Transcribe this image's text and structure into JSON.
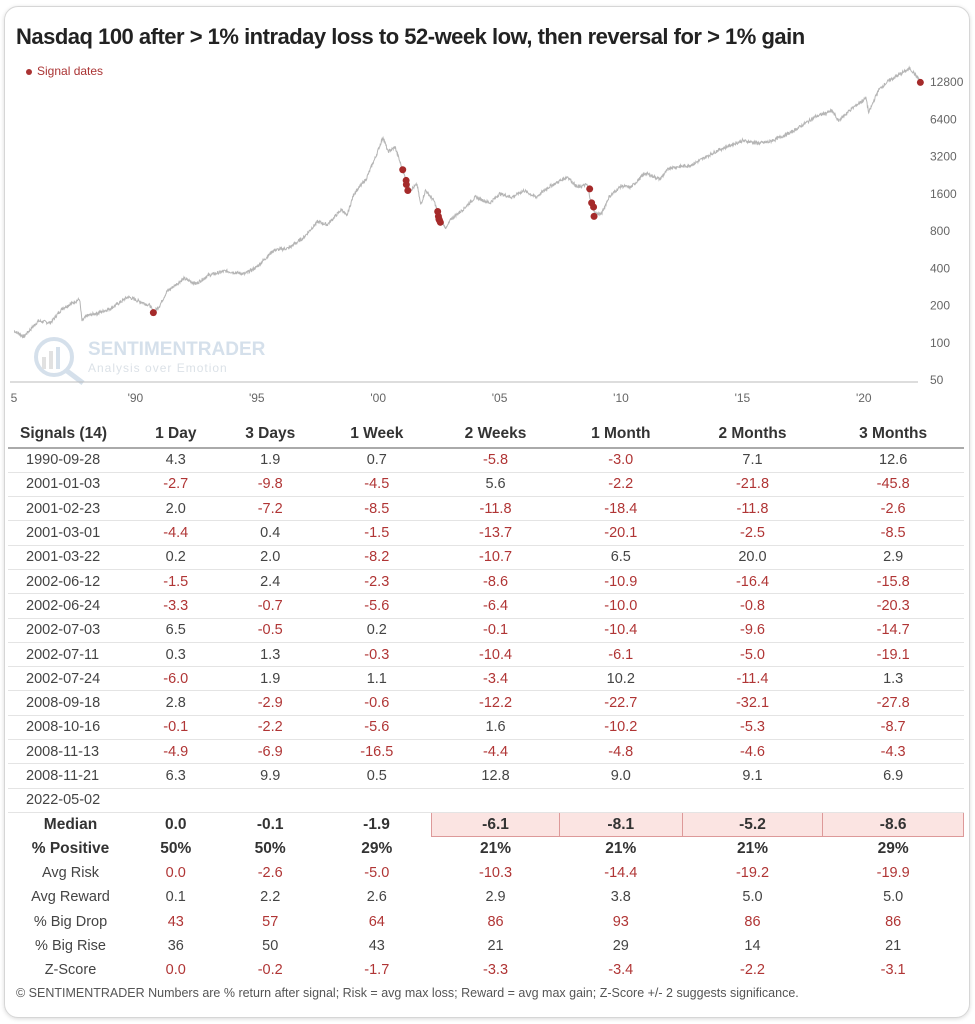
{
  "chart_data": {
    "type": "line",
    "title": "Nasdaq 100 after > 1% intraday loss to 52-week low, then reversal for > 1% gain",
    "legend": "Signal dates",
    "legend_placement": "top-left",
    "y_scale": "log2",
    "ylim": [
      50,
      16000
    ],
    "xlim": [
      1985,
      2022.5
    ],
    "y_ticks": [
      50,
      100,
      200,
      400,
      800,
      1600,
      3200,
      6400,
      12800
    ],
    "x_ticks": [
      {
        "v": 1985,
        "label": "5"
      },
      {
        "v": 1990,
        "label": "'90"
      },
      {
        "v": 1995,
        "label": "'95"
      },
      {
        "v": 2000,
        "label": "'00"
      },
      {
        "v": 2005,
        "label": "'05"
      },
      {
        "v": 2010,
        "label": "'10"
      },
      {
        "v": 2015,
        "label": "'15"
      },
      {
        "v": 2020,
        "label": "'20"
      }
    ],
    "series": [
      {
        "name": "Nasdaq 100",
        "points": [
          [
            1985,
            125
          ],
          [
            1985.4,
            112
          ],
          [
            1986,
            150
          ],
          [
            1986.5,
            145
          ],
          [
            1987,
            190
          ],
          [
            1987.7,
            225
          ],
          [
            1987.8,
            150
          ],
          [
            1988,
            165
          ],
          [
            1988.5,
            175
          ],
          [
            1989,
            190
          ],
          [
            1989.7,
            235
          ],
          [
            1990.6,
            200
          ],
          [
            1990.75,
            175
          ],
          [
            1991,
            200
          ],
          [
            1991.3,
            260
          ],
          [
            1992,
            330
          ],
          [
            1992.5,
            300
          ],
          [
            1993,
            350
          ],
          [
            1993.7,
            380
          ],
          [
            1994.5,
            360
          ],
          [
            1995,
            410
          ],
          [
            1995.7,
            560
          ],
          [
            1996.3,
            580
          ],
          [
            1996.9,
            700
          ],
          [
            1997.5,
            950
          ],
          [
            1997.9,
            900
          ],
          [
            1998.5,
            1200
          ],
          [
            1998.7,
            1050
          ],
          [
            1999,
            1600
          ],
          [
            1999.5,
            2100
          ],
          [
            1999.9,
            3200
          ],
          [
            2000.2,
            4600
          ],
          [
            2000.4,
            3500
          ],
          [
            2000.7,
            3800
          ],
          [
            2001,
            2500
          ],
          [
            2001.3,
            1700
          ],
          [
            2001.6,
            1900
          ],
          [
            2001.75,
            1300
          ],
          [
            2001.95,
            1700
          ],
          [
            2002.3,
            1400
          ],
          [
            2002.55,
            1000
          ],
          [
            2002.8,
            840
          ],
          [
            2003,
            1000
          ],
          [
            2003.5,
            1200
          ],
          [
            2004,
            1500
          ],
          [
            2004.6,
            1350
          ],
          [
            2005,
            1600
          ],
          [
            2005.5,
            1500
          ],
          [
            2006,
            1700
          ],
          [
            2006.5,
            1500
          ],
          [
            2007,
            1800
          ],
          [
            2007.8,
            2200
          ],
          [
            2008.2,
            1800
          ],
          [
            2008.6,
            1900
          ],
          [
            2008.8,
            1300
          ],
          [
            2008.95,
            1100
          ],
          [
            2009.2,
            1100
          ],
          [
            2009.5,
            1500
          ],
          [
            2010,
            1850
          ],
          [
            2010.4,
            1800
          ],
          [
            2011,
            2350
          ],
          [
            2011.6,
            2100
          ],
          [
            2012,
            2600
          ],
          [
            2012.8,
            2700
          ],
          [
            2013,
            2800
          ],
          [
            2014,
            3600
          ],
          [
            2015,
            4300
          ],
          [
            2015.7,
            4100
          ],
          [
            2016.1,
            4200
          ],
          [
            2017,
            5000
          ],
          [
            2018,
            6700
          ],
          [
            2018.7,
            7500
          ],
          [
            2018.95,
            6200
          ],
          [
            2019.5,
            7800
          ],
          [
            2020.1,
            9500
          ],
          [
            2020.2,
            7200
          ],
          [
            2020.6,
            11000
          ],
          [
            2021,
            13000
          ],
          [
            2021.9,
            16500
          ],
          [
            2022.2,
            14000
          ],
          [
            2022.35,
            12800
          ]
        ]
      }
    ],
    "signals": [
      [
        1990.74,
        175
      ],
      [
        2001.01,
        2500
      ],
      [
        2001.15,
        2050
      ],
      [
        2001.16,
        1900
      ],
      [
        2001.22,
        1700
      ],
      [
        2002.45,
        1150
      ],
      [
        2002.48,
        1050
      ],
      [
        2002.5,
        1000
      ],
      [
        2002.52,
        980
      ],
      [
        2002.56,
        940
      ],
      [
        2008.71,
        1750
      ],
      [
        2008.79,
        1350
      ],
      [
        2008.87,
        1250
      ],
      [
        2008.89,
        1050
      ],
      [
        2022.33,
        12700
      ]
    ]
  },
  "watermark": {
    "name": "SENTIMENTRADER",
    "tagline": "Analysis over Emotion"
  },
  "table": {
    "headers": [
      "Signals (14)",
      "1 Day",
      "3 Days",
      "1 Week",
      "2 Weeks",
      "1 Month",
      "2 Months",
      "3 Months"
    ],
    "rows": [
      [
        "1990-09-28",
        "4.3",
        "1.9",
        "0.7",
        "-5.8",
        "-3.0",
        "7.1",
        "12.6"
      ],
      [
        "2001-01-03",
        "-2.7",
        "-9.8",
        "-4.5",
        "5.6",
        "-2.2",
        "-21.8",
        "-45.8"
      ],
      [
        "2001-02-23",
        "2.0",
        "-7.2",
        "-8.5",
        "-11.8",
        "-18.4",
        "-11.8",
        "-2.6"
      ],
      [
        "2001-03-01",
        "-4.4",
        "0.4",
        "-1.5",
        "-13.7",
        "-20.1",
        "-2.5",
        "-8.5"
      ],
      [
        "2001-03-22",
        "0.2",
        "2.0",
        "-8.2",
        "-10.7",
        "6.5",
        "20.0",
        "2.9"
      ],
      [
        "2002-06-12",
        "-1.5",
        "2.4",
        "-2.3",
        "-8.6",
        "-10.9",
        "-16.4",
        "-15.8"
      ],
      [
        "2002-06-24",
        "-3.3",
        "-0.7",
        "-5.6",
        "-6.4",
        "-10.0",
        "-0.8",
        "-20.3"
      ],
      [
        "2002-07-03",
        "6.5",
        "-0.5",
        "0.2",
        "-0.1",
        "-10.4",
        "-9.6",
        "-14.7"
      ],
      [
        "2002-07-11",
        "0.3",
        "1.3",
        "-0.3",
        "-10.4",
        "-6.1",
        "-5.0",
        "-19.1"
      ],
      [
        "2002-07-24",
        "-6.0",
        "1.9",
        "1.1",
        "-3.4",
        "10.2",
        "-11.4",
        "1.3"
      ],
      [
        "2008-09-18",
        "2.8",
        "-2.9",
        "-0.6",
        "-12.2",
        "-22.7",
        "-32.1",
        "-27.8"
      ],
      [
        "2008-10-16",
        "-0.1",
        "-2.2",
        "-5.6",
        "1.6",
        "-10.2",
        "-5.3",
        "-8.7"
      ],
      [
        "2008-11-13",
        "-4.9",
        "-6.9",
        "-16.5",
        "-4.4",
        "-4.8",
        "-4.6",
        "-4.3"
      ],
      [
        "2008-11-21",
        "6.3",
        "9.9",
        "0.5",
        "12.8",
        "9.0",
        "9.1",
        "6.9"
      ],
      [
        "2022-05-02",
        "",
        "",
        "",
        "",
        "",
        "",
        ""
      ]
    ],
    "stats": [
      {
        "label": "Median",
        "values": [
          "0.0",
          "-0.1",
          "-1.9",
          "-6.1",
          "-8.1",
          "-5.2",
          "-8.6"
        ],
        "bold": true,
        "highlight": [
          3,
          4,
          5,
          6
        ]
      },
      {
        "label": "% Positive",
        "values": [
          "50%",
          "50%",
          "29%",
          "21%",
          "21%",
          "21%",
          "29%"
        ],
        "bold": true,
        "nocolor": true
      },
      {
        "label": "Avg Risk",
        "values": [
          "0.0",
          "-2.6",
          "-5.0",
          "-10.3",
          "-14.4",
          "-19.2",
          "-19.9"
        ],
        "allred": true
      },
      {
        "label": "Avg Reward",
        "values": [
          "0.1",
          "2.2",
          "2.6",
          "2.9",
          "3.8",
          "5.0",
          "5.0"
        ]
      },
      {
        "label": "% Big Drop",
        "values": [
          "43",
          "57",
          "64",
          "86",
          "93",
          "86",
          "86"
        ],
        "allred": true
      },
      {
        "label": "% Big Rise",
        "values": [
          "36",
          "50",
          "43",
          "21",
          "29",
          "14",
          "21"
        ]
      },
      {
        "label": "Z-Score",
        "values": [
          "0.0",
          "-0.2",
          "-1.7",
          "-3.3",
          "-3.4",
          "-2.2",
          "-3.1"
        ],
        "allred": true
      }
    ]
  },
  "footer": "© SENTIMENTRADER  Numbers are % return after signal; Risk = avg max loss; Reward = avg max gain; Z-Score +/- 2 suggests significance.",
  "colors": {
    "line": "#b5b5b5",
    "signal": "#a52a2a",
    "negative": "#b03535"
  }
}
